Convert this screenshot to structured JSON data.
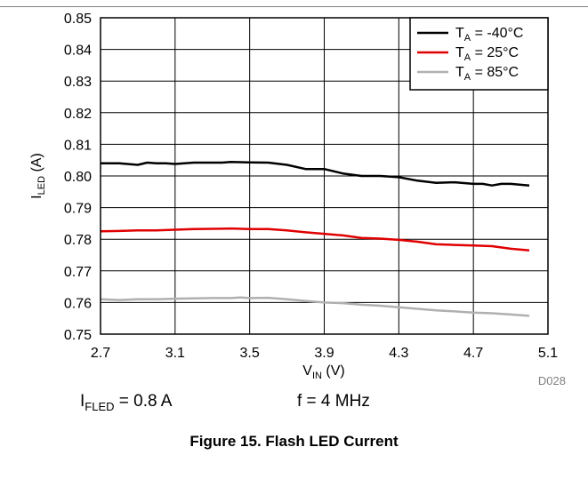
{
  "chart_data": {
    "type": "line",
    "title": "",
    "xlabel": {
      "main": "V",
      "sub": "IN",
      "unit": " (V)"
    },
    "ylabel": {
      "main": "I",
      "sub": "LED",
      "unit": " (A)"
    },
    "xlim": [
      2.7,
      5.1
    ],
    "ylim": [
      0.75,
      0.85
    ],
    "x_ticks": [
      "2.7",
      "3.1",
      "3.5",
      "3.9",
      "4.3",
      "4.7",
      "5.1"
    ],
    "y_ticks": [
      "0.75",
      "0.76",
      "0.77",
      "0.78",
      "0.79",
      "0.80",
      "0.81",
      "0.82",
      "0.83",
      "0.84",
      "0.85"
    ],
    "grid": true,
    "legend_position": "top-right",
    "series": [
      {
        "name": {
          "main": "T",
          "sub": "A",
          "rest": " = -40°C"
        },
        "color": "#000000",
        "x": [
          2.7,
          2.8,
          2.9,
          2.95,
          3.0,
          3.05,
          3.1,
          3.2,
          3.3,
          3.35,
          3.4,
          3.5,
          3.6,
          3.7,
          3.8,
          3.9,
          4.0,
          4.1,
          4.2,
          4.3,
          4.4,
          4.5,
          4.6,
          4.7,
          4.75,
          4.8,
          4.85,
          4.9,
          5.0
        ],
        "y": [
          0.804,
          0.804,
          0.8035,
          0.8042,
          0.804,
          0.804,
          0.8038,
          0.8042,
          0.8042,
          0.8042,
          0.8044,
          0.8043,
          0.8042,
          0.8035,
          0.8022,
          0.8022,
          0.8008,
          0.8,
          0.8,
          0.7996,
          0.7985,
          0.7978,
          0.798,
          0.7975,
          0.7975,
          0.797,
          0.7975,
          0.7975,
          0.797
        ]
      },
      {
        "name": {
          "main": "T",
          "sub": "A",
          "rest": " = 25°C"
        },
        "color": "#e00000",
        "x": [
          2.7,
          2.8,
          2.9,
          3.0,
          3.1,
          3.2,
          3.3,
          3.4,
          3.5,
          3.6,
          3.7,
          3.8,
          3.9,
          4.0,
          4.1,
          4.2,
          4.3,
          4.4,
          4.5,
          4.6,
          4.7,
          4.8,
          4.9,
          5.0
        ],
        "y": [
          0.7825,
          0.7826,
          0.7828,
          0.7828,
          0.783,
          0.7832,
          0.7833,
          0.7834,
          0.7832,
          0.7832,
          0.7828,
          0.7822,
          0.7817,
          0.7812,
          0.7804,
          0.7802,
          0.7798,
          0.7792,
          0.7784,
          0.7782,
          0.778,
          0.7778,
          0.777,
          0.7765
        ]
      },
      {
        "name": {
          "main": "T",
          "sub": "A",
          "rest": " = 85°C"
        },
        "color": "#b0b0b0",
        "x": [
          2.7,
          2.8,
          2.9,
          3.0,
          3.1,
          3.2,
          3.3,
          3.4,
          3.45,
          3.5,
          3.6,
          3.7,
          3.8,
          3.9,
          4.0,
          4.1,
          4.2,
          4.3,
          4.4,
          4.5,
          4.6,
          4.65,
          4.7,
          4.8,
          4.9,
          5.0
        ],
        "y": [
          0.761,
          0.7608,
          0.761,
          0.761,
          0.7612,
          0.7613,
          0.7614,
          0.7614,
          0.7616,
          0.7614,
          0.7615,
          0.761,
          0.7605,
          0.76,
          0.7598,
          0.7593,
          0.759,
          0.7585,
          0.758,
          0.7575,
          0.7572,
          0.757,
          0.7568,
          0.7566,
          0.7562,
          0.7558
        ]
      }
    ]
  },
  "figure_code": "D028",
  "conditions": {
    "left": {
      "main": "I",
      "sub": "FLED",
      "rest": " = 0.8 A"
    },
    "right": "f = 4 MHz"
  },
  "caption": "Figure 15. Flash LED Current"
}
